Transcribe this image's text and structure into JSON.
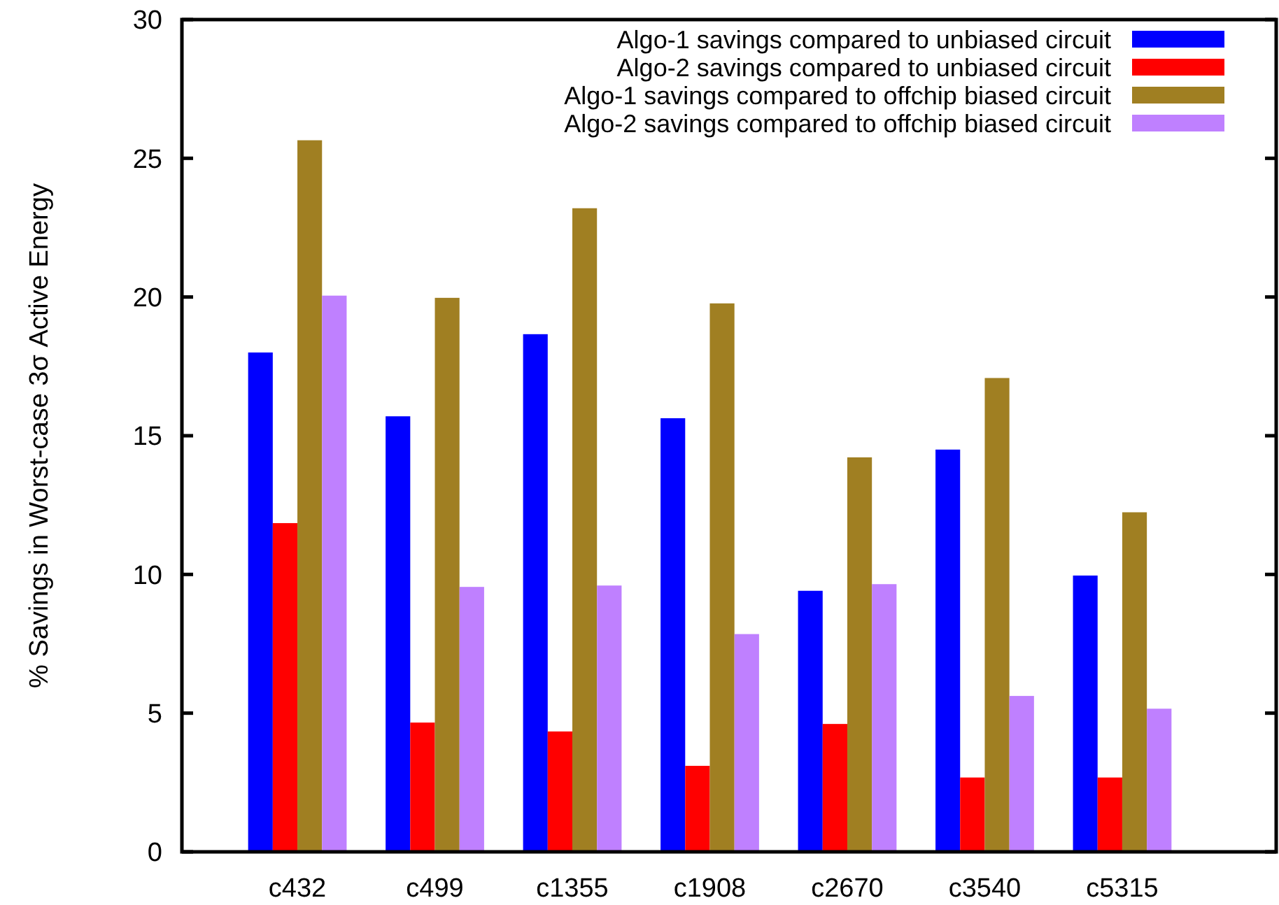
{
  "chart_data": {
    "type": "bar",
    "ylabel": "% Savings in Worst-case 3σ Active Energy",
    "categories": [
      "c432",
      "c499",
      "c1355",
      "c1908",
      "c2670",
      "c3540",
      "c5315"
    ],
    "series": [
      {
        "name": "Algo-1 savings compared to unbiased circuit",
        "color": "#0000ff",
        "values": [
          18.0,
          15.7,
          18.66,
          15.63,
          9.41,
          14.5,
          9.96
        ]
      },
      {
        "name": "Algo-2 savings compared to unbiased circuit",
        "color": "#ff0000",
        "values": [
          11.85,
          4.66,
          4.34,
          3.1,
          4.61,
          2.68,
          2.68
        ]
      },
      {
        "name": "Algo-1 savings compared to offchip biased circuit",
        "color": "#a07f22",
        "values": [
          25.65,
          19.97,
          23.2,
          19.77,
          14.22,
          17.08,
          12.24
        ]
      },
      {
        "name": "Algo-2 savings compared to offchip biased circuit",
        "color": "#bf80ff",
        "values": [
          20.05,
          9.55,
          9.6,
          7.85,
          9.65,
          5.62,
          5.16
        ]
      }
    ],
    "ylim": [
      0,
      30
    ],
    "yticks": [
      0,
      5,
      10,
      15,
      20,
      25,
      30
    ],
    "grid": false,
    "legend": "top right"
  }
}
